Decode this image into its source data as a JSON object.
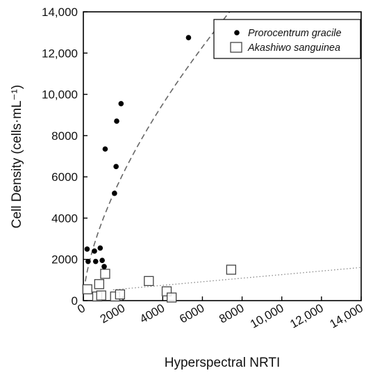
{
  "chart_data": {
    "type": "scatter",
    "title": "",
    "xlabel": "Hyperspectral NRTI",
    "ylabel": "Cell Density (cells·mL⁻¹)",
    "xlim": [
      0,
      14000
    ],
    "ylim": [
      0,
      14000
    ],
    "x_ticks": [
      0,
      2000,
      4000,
      6000,
      8000,
      10000,
      12000,
      14000
    ],
    "x_tick_labels": [
      "0",
      "2000",
      "4000",
      "6000",
      "8000",
      "10,000",
      "12,000",
      "14,000"
    ],
    "y_ticks": [
      0,
      2000,
      4000,
      6000,
      8000,
      10000,
      12000,
      14000
    ],
    "y_tick_labels": [
      "0",
      "2000",
      "4000",
      "6000",
      "8000",
      "10,000",
      "12,000",
      "14,000"
    ],
    "grid": false,
    "legend_position": "top-right",
    "series": [
      {
        "name": "Prorocentrum gracile",
        "marker": "filled-circle",
        "color": "#000000",
        "x": [
          190,
          240,
          560,
          620,
          850,
          950,
          1050,
          1100,
          1570,
          1650,
          1680,
          1900,
          5300
        ],
        "y": [
          2500,
          1900,
          2400,
          1900,
          2550,
          1950,
          1650,
          7350,
          5200,
          6500,
          8700,
          9550,
          12750
        ],
        "fit": {
          "style": "dashed",
          "color": "#666666"
        }
      },
      {
        "name": "Akashiwo sanguinea",
        "marker": "open-square",
        "color": "#333333",
        "x": [
          200,
          700,
          800,
          900,
          1100,
          1600,
          1850,
          3300,
          4200,
          4450,
          7450
        ],
        "y": [
          550,
          200,
          800,
          250,
          1300,
          200,
          300,
          950,
          450,
          150,
          1500
        ],
        "fit": {
          "style": "dotted",
          "color": "#888888"
        }
      }
    ]
  }
}
